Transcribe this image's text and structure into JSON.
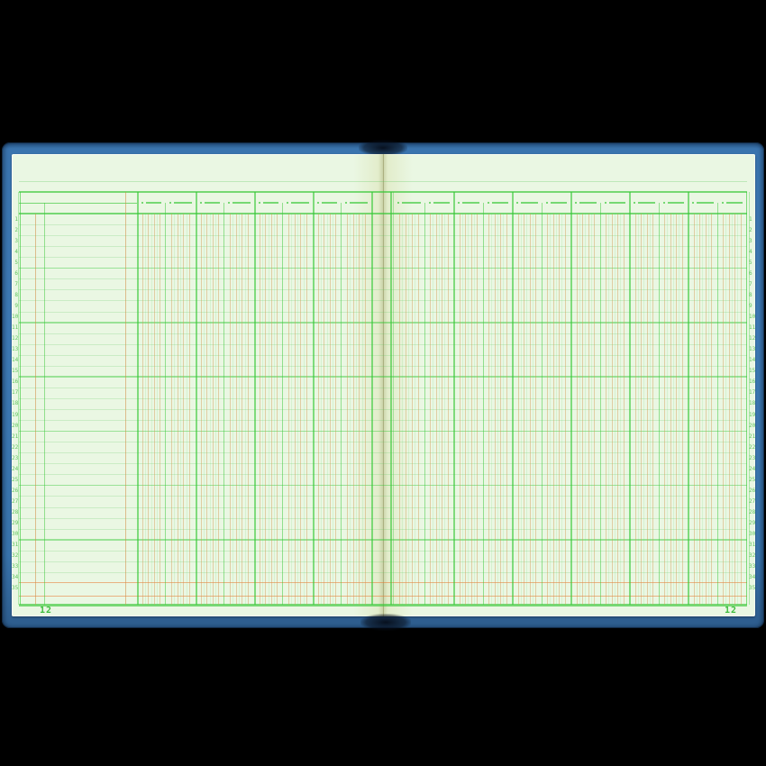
{
  "book": {
    "left_page": {
      "page_number": "12",
      "row_numbers": [
        1,
        2,
        3,
        4,
        5,
        6,
        7,
        8,
        9,
        10,
        11,
        12,
        13,
        14,
        15,
        16,
        17,
        18,
        19,
        20,
        21,
        22,
        23,
        24,
        25,
        26,
        27,
        28,
        29,
        30,
        31,
        32,
        33,
        34,
        35
      ]
    },
    "right_page": {
      "page_number": "12",
      "row_numbers": [
        1,
        2,
        3,
        4,
        5,
        6,
        7,
        8,
        9,
        10,
        11,
        12,
        13,
        14,
        15,
        16,
        17,
        18,
        19,
        20,
        21,
        22,
        23,
        24,
        25,
        26,
        27,
        28,
        29,
        30,
        31,
        32,
        33,
        34,
        35
      ]
    }
  },
  "colors": {
    "cover_blue": "#3d79b4",
    "page_green": "#eaf7e3",
    "grid_strong": "rgba(55,200,55,0.65)",
    "grid_sub": "rgba(55,200,55,0.50)",
    "grid_medium": "rgba(55,200,55,0.45)",
    "grid_faint": "rgba(90,200,90,0.22)",
    "grid_microgreen": "rgba(90,205,90,0.14)",
    "tan_line": "rgba(210,148,75,0.42)",
    "tan_strong": "rgba(208,140,68,0.55)",
    "orange_line": "rgba(232,120,50,0.55)",
    "number_green": "#3dbc3d"
  }
}
